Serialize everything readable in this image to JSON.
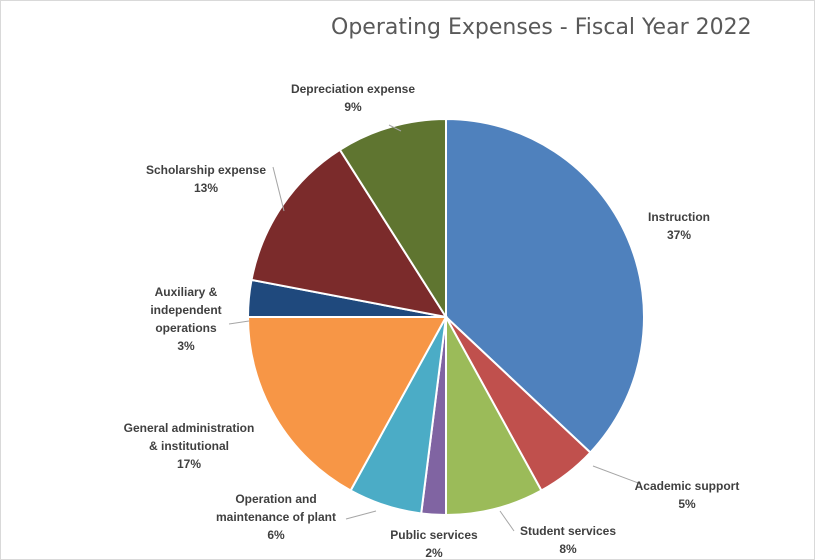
{
  "chart_data": {
    "type": "pie",
    "title": "Operating Expenses - Fiscal Year 2022",
    "slices": [
      {
        "name": "Instruction",
        "label_lines": [
          "Instruction"
        ],
        "value": 37,
        "value_label": "37%",
        "color": "#4F81BD"
      },
      {
        "name": "Academic support",
        "label_lines": [
          "Academic support"
        ],
        "value": 5,
        "value_label": "5%",
        "color": "#C0504D"
      },
      {
        "name": "Student services",
        "label_lines": [
          "Student services"
        ],
        "value": 8,
        "value_label": "8%",
        "color": "#9BBB59"
      },
      {
        "name": "Public services",
        "label_lines": [
          "Public services"
        ],
        "value": 2,
        "value_label": "2%",
        "color": "#8064A2"
      },
      {
        "name": "Operation and maintenance of plant",
        "label_lines": [
          "Operation and",
          "maintenance of plant"
        ],
        "value": 6,
        "value_label": "6%",
        "color": "#4BACC6"
      },
      {
        "name": "General administration & institutional",
        "label_lines": [
          "General administration",
          "& institutional"
        ],
        "value": 17,
        "value_label": "17%",
        "color": "#F79646"
      },
      {
        "name": "Auxiliary & independent operations",
        "label_lines": [
          "Auxiliary &",
          "independent",
          "operations"
        ],
        "value": 3,
        "value_label": "3%",
        "color": "#1F497D"
      },
      {
        "name": "Scholarship expense",
        "label_lines": [
          "Scholarship expense"
        ],
        "value": 13,
        "value_label": "13%",
        "color": "#7B2B2B"
      },
      {
        "name": "Depreciation expense",
        "label_lines": [
          "Depreciation expense"
        ],
        "value": 9,
        "value_label": "9%",
        "color": "#5F7530"
      }
    ]
  }
}
